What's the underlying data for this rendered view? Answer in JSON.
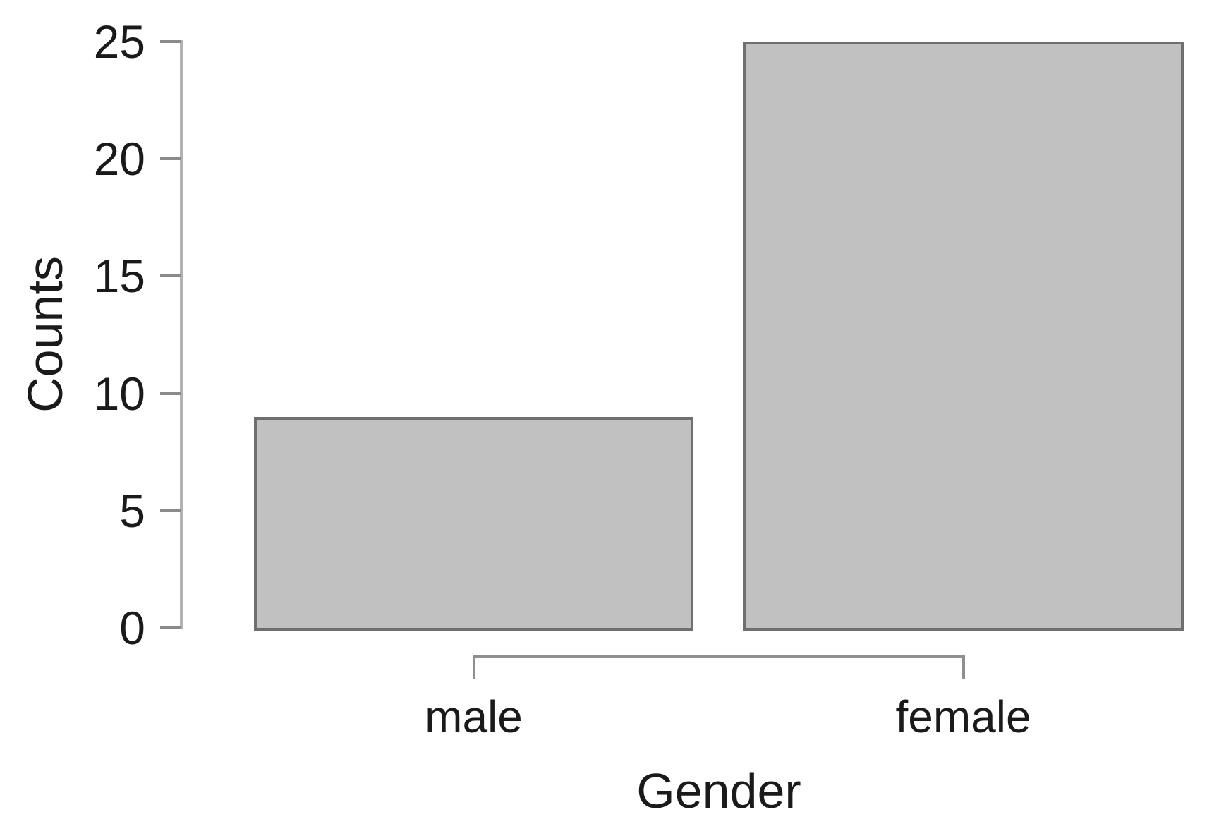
{
  "chart_data": {
    "type": "bar",
    "title": "",
    "categories": [
      "male",
      "female"
    ],
    "values": [
      9,
      25
    ],
    "xlabel": "Gender",
    "ylabel": "Counts",
    "ylim": [
      0,
      25
    ],
    "yticks": [
      0,
      5,
      10,
      15,
      20,
      25
    ],
    "grid": false,
    "legend": "none",
    "orientation": "vertical",
    "colors": {
      "bar_fill": "#c1c1c2",
      "bar_border": "#6f6f6f",
      "axis_line": "#b2b2b2",
      "tick_mark": "#8a8a8a",
      "bracket": "#8f8f8f",
      "text": "#1a1a1a",
      "background": "#ffffff"
    }
  }
}
